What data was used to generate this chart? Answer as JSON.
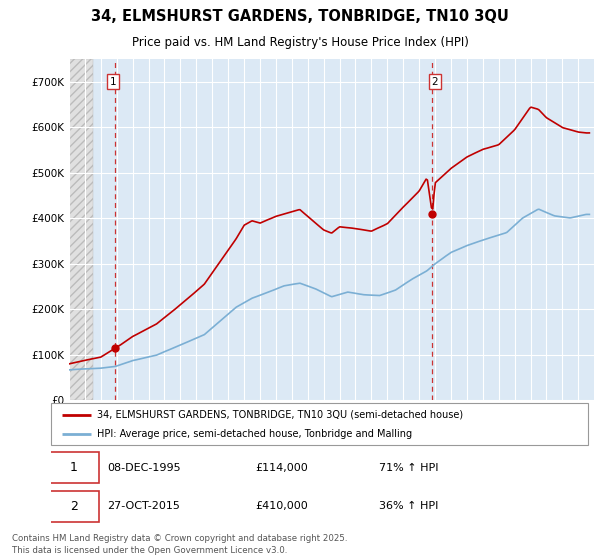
{
  "title": "34, ELMSHURST GARDENS, TONBRIDGE, TN10 3QU",
  "subtitle": "Price paid vs. HM Land Registry's House Price Index (HPI)",
  "ylim": [
    0,
    750000
  ],
  "yticks": [
    0,
    100000,
    200000,
    300000,
    400000,
    500000,
    600000,
    700000
  ],
  "ytick_labels": [
    "£0",
    "£100K",
    "£200K",
    "£300K",
    "£400K",
    "£500K",
    "£600K",
    "£700K"
  ],
  "xlim_start": 1993.0,
  "xlim_end": 2025.99,
  "sale1_x": 1995.92,
  "sale1_y": 114000,
  "sale2_x": 2015.83,
  "sale2_y": 410000,
  "hpi_color": "#7bafd4",
  "price_color": "#c00000",
  "plot_bg_color": "#dce9f5",
  "hatch_bg_color": "#e8e8e8",
  "grid_color": "#ffffff",
  "legend_label_price": "34, ELMSHURST GARDENS, TONBRIDGE, TN10 3QU (semi-detached house)",
  "legend_label_hpi": "HPI: Average price, semi-detached house, Tonbridge and Malling",
  "sale1_date": "08-DEC-1995",
  "sale1_price": "£114,000",
  "sale1_hpi": "71% ↑ HPI",
  "sale2_date": "27-OCT-2015",
  "sale2_price": "£410,000",
  "sale2_hpi": "36% ↑ HPI",
  "footer": "Contains HM Land Registry data © Crown copyright and database right 2025.\nThis data is licensed under the Open Government Licence v3.0."
}
